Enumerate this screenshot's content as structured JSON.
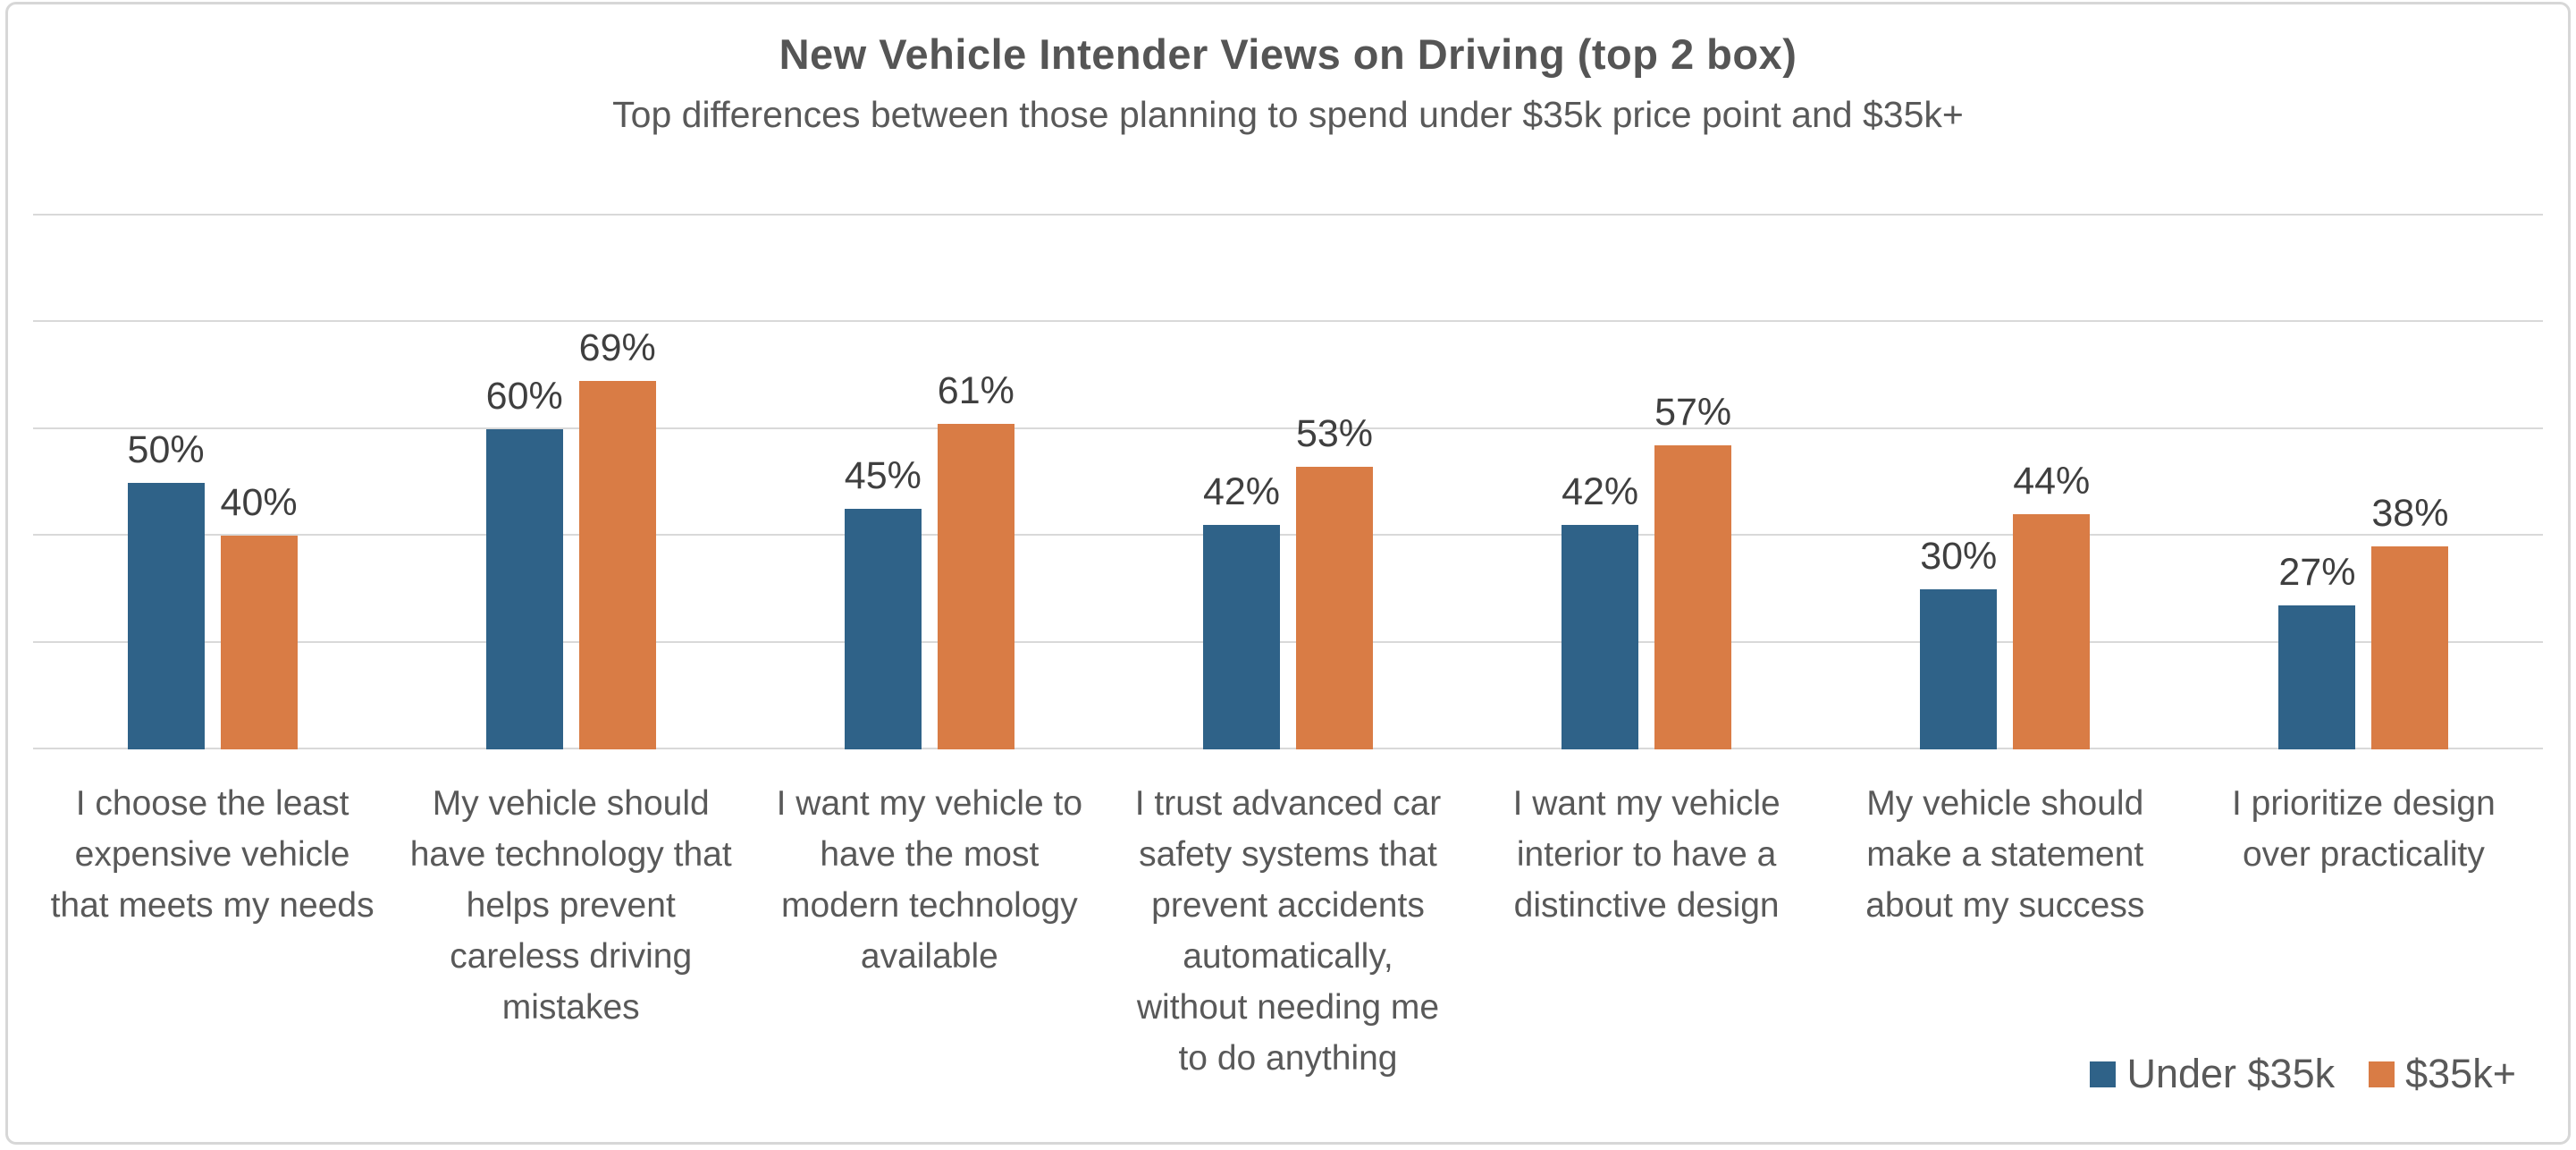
{
  "chart_data": {
    "type": "bar",
    "title": "New Vehicle Intender Views on Driving (top 2 box)",
    "subtitle": "Top differences between those planning to spend under $35k price point and $35k+",
    "categories": [
      "I choose the least expensive vehicle that meets my needs",
      "My vehicle should have technology that helps prevent careless driving mistakes",
      "I want my vehicle to have the most modern technology available",
      "I trust advanced car safety systems that prevent accidents automatically, without needing me to do anything",
      "I want my vehicle interior to have a distinctive design",
      "My vehicle should make a statement about my success",
      "I prioritize design over practicality"
    ],
    "series": [
      {
        "name": "Under $35k",
        "color": "#2f6288",
        "values": [
          50,
          60,
          45,
          42,
          42,
          30,
          27
        ]
      },
      {
        "name": "$35k+",
        "color": "#d97c45",
        "values": [
          40,
          69,
          61,
          53,
          57,
          44,
          38
        ]
      }
    ],
    "value_suffix": "%",
    "ylim": [
      0,
      100
    ],
    "gridline_interval": 20,
    "grid": true,
    "y_axis_labels_shown": false,
    "data_labels": true,
    "legend_position": "bottom-right"
  },
  "colors": {
    "series_blue": "#2f6288",
    "series_orange": "#d97c45",
    "gridline": "#d9d9d9",
    "title_text": "#555555",
    "body_text": "#595959",
    "data_label_text": "#3f3f3f",
    "card_border": "#d7d7d7",
    "background": "#ffffff"
  }
}
